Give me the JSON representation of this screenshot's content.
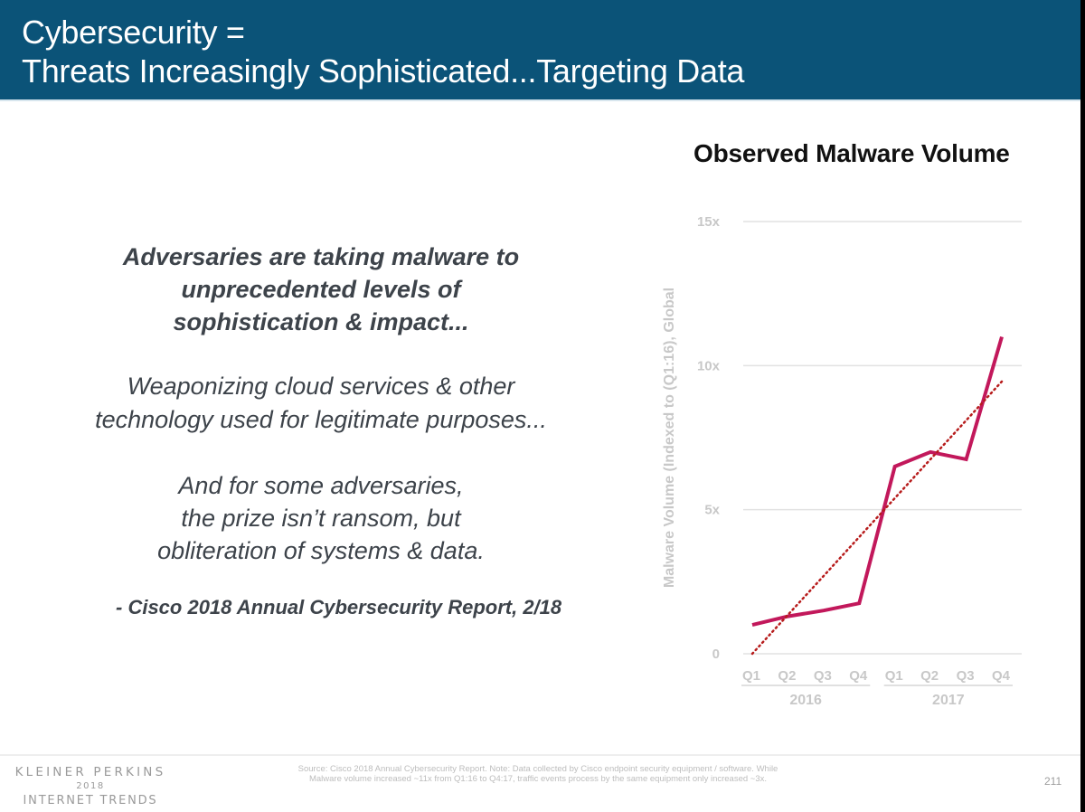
{
  "slide": {
    "title_line1": "Cybersecurity =",
    "title_line2": "Threats Increasingly Sophisticated...Targeting Data",
    "header_color": "#0b5378",
    "page_number": "211"
  },
  "quote": {
    "bold_lines": [
      "Adversaries are taking malware to",
      "unprecedented levels of",
      "sophistication & impact..."
    ],
    "middle_lines": [
      "Weaponizing cloud services & other",
      "technology used for legitimate purposes..."
    ],
    "end_lines": [
      "And for some adversaries,",
      "the prize isn’t ransom, but",
      "obliteration of systems & data."
    ],
    "citation": "- Cisco 2018 Annual Cybersecurity Report, 2/18"
  },
  "footer": {
    "brand_line1": "KLEINER PERKINS",
    "brand_line2": "2018",
    "brand_line3": "INTERNET TRENDS",
    "source_line1": "Source: Cisco 2018 Annual Cybersecurity Report.  Note: Data collected by Cisco endpoint security equipment / software. While",
    "source_line2": "Malware volume increased ~11x from Q1:16 to Q4:17, traffic events process by the same equipment only increased ~3x."
  },
  "chart_data": {
    "type": "line",
    "title": "Observed Malware Volume",
    "xlabel": "",
    "ylabel": "Malware Volume (Indexed to (Q1:16), Global",
    "categories": [
      "Q1",
      "Q2",
      "Q3",
      "Q4",
      "Q1",
      "Q2",
      "Q3",
      "Q4"
    ],
    "category_groups": [
      {
        "label": "2016",
        "span": [
          0,
          3
        ]
      },
      {
        "label": "2017",
        "span": [
          4,
          7
        ]
      }
    ],
    "y_ticks": [
      {
        "value": 0,
        "label": "0"
      },
      {
        "value": 5,
        "label": "5x"
      },
      {
        "value": 10,
        "label": "10x"
      },
      {
        "value": 15,
        "label": "15x"
      }
    ],
    "ylim": [
      0,
      15
    ],
    "grid": true,
    "series": [
      {
        "name": "Malware Volume",
        "style": "solid",
        "color": "#c2185b",
        "values": [
          1.0,
          1.3,
          1.5,
          1.75,
          6.5,
          7.0,
          6.75,
          11.0
        ]
      },
      {
        "name": "Trend",
        "style": "dotted",
        "color": "#b71c1c",
        "values": [
          0.0,
          1.35,
          2.7,
          4.05,
          5.4,
          6.75,
          8.1,
          9.45
        ]
      }
    ],
    "legend": "none"
  }
}
